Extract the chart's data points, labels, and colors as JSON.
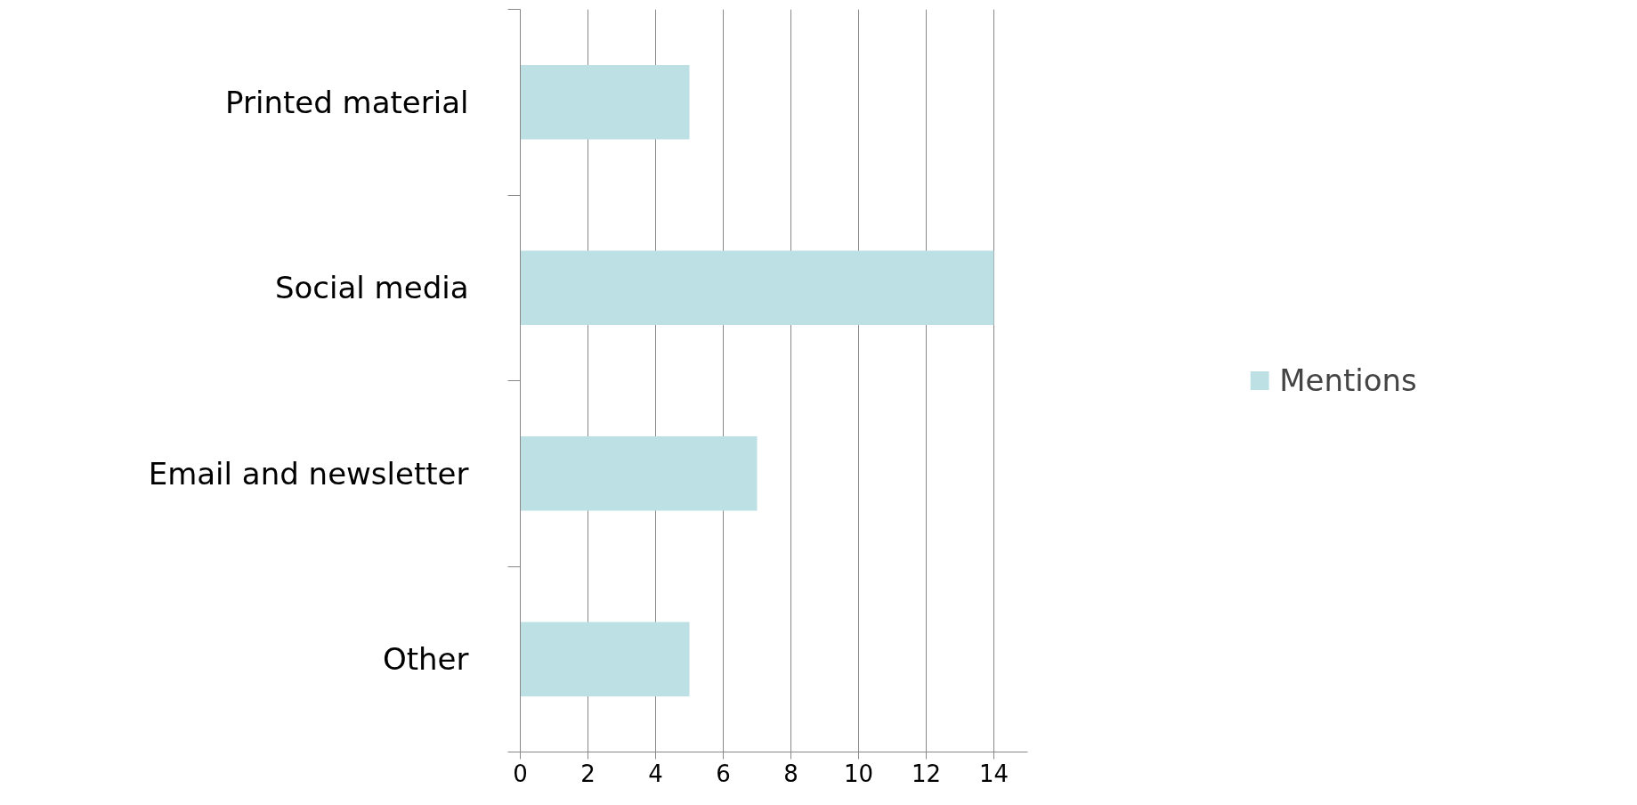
{
  "chart_data": {
    "type": "bar",
    "orientation": "horizontal",
    "categories": [
      "Printed material",
      "Social media",
      "Email and newsletter",
      "Other"
    ],
    "series": [
      {
        "name": "Mentions",
        "color": "#bce0e3",
        "values": [
          5,
          14,
          7,
          5
        ]
      }
    ],
    "xlim": [
      0,
      15
    ],
    "xticks": [
      0,
      2,
      4,
      6,
      8,
      10,
      12,
      14
    ],
    "grid": "x",
    "legend": "right"
  }
}
